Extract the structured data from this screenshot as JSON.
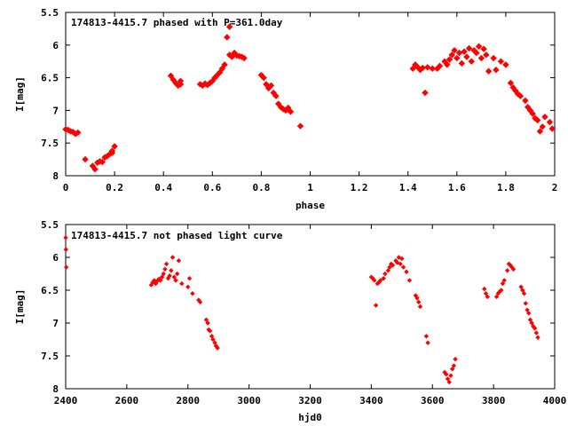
{
  "chart_data": [
    {
      "type": "scatter",
      "title": "174813-4415.7 phased with P=361.0day",
      "xlabel": "phase",
      "ylabel": "I[mag]",
      "xlim": [
        0,
        2
      ],
      "ylim": [
        8,
        5.5
      ],
      "y_inverted": true,
      "xticks": [
        "0",
        "0.2",
        "0.4",
        "0.6",
        "0.8",
        "1",
        "1.2",
        "1.4",
        "1.6",
        "1.8",
        "2"
      ],
      "yticks": [
        "5.5",
        "6",
        "6.5",
        "7",
        "7.5",
        "8"
      ],
      "marker_color": "#ff0000",
      "series": [
        {
          "values": [
            [
              0.0,
              7.29
            ],
            [
              0.01,
              7.3
            ],
            [
              0.02,
              7.32
            ],
            [
              0.03,
              7.33
            ],
            [
              0.04,
              7.36
            ],
            [
              0.05,
              7.34
            ],
            [
              0.08,
              7.75
            ],
            [
              0.11,
              7.85
            ],
            [
              0.12,
              7.9
            ],
            [
              0.13,
              7.8
            ],
            [
              0.14,
              7.78
            ],
            [
              0.15,
              7.79
            ],
            [
              0.16,
              7.72
            ],
            [
              0.17,
              7.7
            ],
            [
              0.18,
              7.67
            ],
            [
              0.19,
              7.65
            ],
            [
              0.19,
              7.62
            ],
            [
              0.2,
              7.55
            ],
            [
              0.43,
              6.47
            ],
            [
              0.44,
              6.53
            ],
            [
              0.45,
              6.58
            ],
            [
              0.46,
              6.62
            ],
            [
              0.47,
              6.55
            ],
            [
              0.47,
              6.6
            ],
            [
              0.55,
              6.6
            ],
            [
              0.56,
              6.62
            ],
            [
              0.57,
              6.59
            ],
            [
              0.58,
              6.61
            ],
            [
              0.59,
              6.58
            ],
            [
              0.6,
              6.55
            ],
            [
              0.61,
              6.5
            ],
            [
              0.62,
              6.46
            ],
            [
              0.63,
              6.42
            ],
            [
              0.64,
              6.36
            ],
            [
              0.65,
              6.3
            ],
            [
              0.66,
              5.88
            ],
            [
              0.67,
              5.72
            ],
            [
              0.67,
              6.15
            ],
            [
              0.68,
              6.18
            ],
            [
              0.69,
              6.12
            ],
            [
              0.7,
              6.16
            ],
            [
              0.71,
              6.17
            ],
            [
              0.72,
              6.18
            ],
            [
              0.73,
              6.2
            ],
            [
              0.8,
              6.46
            ],
            [
              0.81,
              6.5
            ],
            [
              0.82,
              6.6
            ],
            [
              0.83,
              6.66
            ],
            [
              0.84,
              6.62
            ],
            [
              0.85,
              6.73
            ],
            [
              0.86,
              6.78
            ],
            [
              0.87,
              6.9
            ],
            [
              0.88,
              6.95
            ],
            [
              0.89,
              6.98
            ],
            [
              0.9,
              7.0
            ],
            [
              0.91,
              6.96
            ],
            [
              0.92,
              7.02
            ],
            [
              0.96,
              7.24
            ],
            [
              1.42,
              6.36
            ],
            [
              1.43,
              6.3
            ],
            [
              1.44,
              6.34
            ],
            [
              1.45,
              6.38
            ],
            [
              1.46,
              6.35
            ],
            [
              1.47,
              6.73
            ],
            [
              1.48,
              6.34
            ],
            [
              1.5,
              6.36
            ],
            [
              1.52,
              6.36
            ],
            [
              1.53,
              6.32
            ],
            [
              1.55,
              6.25
            ],
            [
              1.56,
              6.3
            ],
            [
              1.57,
              6.22
            ],
            [
              1.58,
              6.15
            ],
            [
              1.59,
              6.08
            ],
            [
              1.6,
              6.2
            ],
            [
              1.61,
              6.12
            ],
            [
              1.62,
              6.28
            ],
            [
              1.63,
              6.1
            ],
            [
              1.64,
              6.18
            ],
            [
              1.65,
              6.05
            ],
            [
              1.66,
              6.25
            ],
            [
              1.67,
              6.08
            ],
            [
              1.68,
              6.12
            ],
            [
              1.69,
              6.02
            ],
            [
              1.7,
              6.2
            ],
            [
              1.71,
              6.06
            ],
            [
              1.72,
              6.15
            ],
            [
              1.73,
              6.4
            ],
            [
              1.75,
              6.2
            ],
            [
              1.76,
              6.38
            ],
            [
              1.78,
              6.25
            ],
            [
              1.8,
              6.3
            ],
            [
              1.82,
              6.58
            ],
            [
              1.83,
              6.65
            ],
            [
              1.84,
              6.7
            ],
            [
              1.85,
              6.75
            ],
            [
              1.86,
              6.78
            ],
            [
              1.88,
              6.85
            ],
            [
              1.89,
              6.95
            ],
            [
              1.9,
              7.0
            ],
            [
              1.91,
              7.05
            ],
            [
              1.92,
              7.12
            ],
            [
              1.93,
              7.15
            ],
            [
              1.94,
              7.32
            ],
            [
              1.95,
              7.25
            ],
            [
              1.96,
              7.1
            ],
            [
              1.98,
              7.18
            ],
            [
              1.99,
              7.28
            ]
          ]
        }
      ]
    },
    {
      "type": "scatter",
      "title": "174813-4415.7 not phased light curve",
      "xlabel": "hjd0",
      "ylabel": "I[mag]",
      "xlim": [
        2400,
        4000
      ],
      "ylim": [
        8,
        5.5
      ],
      "y_inverted": true,
      "xticks": [
        "2400",
        "2600",
        "2800",
        "3000",
        "3200",
        "3400",
        "3600",
        "3800",
        "4000"
      ],
      "yticks": [
        "5.5",
        "6",
        "6.5",
        "7",
        "7.5",
        "8"
      ],
      "marker_color": "#ff0000",
      "series": [
        {
          "values": [
            [
              2400,
              5.7
            ],
            [
              2401,
              5.88
            ],
            [
              2402,
              6.15
            ],
            [
              2680,
              6.42
            ],
            [
              2685,
              6.38
            ],
            [
              2690,
              6.35
            ],
            [
              2695,
              6.4
            ],
            [
              2700,
              6.36
            ],
            [
              2705,
              6.33
            ],
            [
              2710,
              6.35
            ],
            [
              2715,
              6.3
            ],
            [
              2720,
              6.25
            ],
            [
              2725,
              6.18
            ],
            [
              2730,
              6.1
            ],
            [
              2735,
              6.32
            ],
            [
              2740,
              6.28
            ],
            [
              2745,
              6.2
            ],
            [
              2750,
              6.0
            ],
            [
              2755,
              6.3
            ],
            [
              2760,
              6.35
            ],
            [
              2765,
              6.25
            ],
            [
              2770,
              6.05
            ],
            [
              2780,
              6.4
            ],
            [
              2800,
              6.45
            ],
            [
              2805,
              6.32
            ],
            [
              2815,
              6.55
            ],
            [
              2835,
              6.65
            ],
            [
              2840,
              6.68
            ],
            [
              2860,
              6.95
            ],
            [
              2865,
              7.0
            ],
            [
              2868,
              7.1
            ],
            [
              2872,
              7.12
            ],
            [
              2878,
              7.2
            ],
            [
              2882,
              7.25
            ],
            [
              2888,
              7.3
            ],
            [
              2892,
              7.35
            ],
            [
              2897,
              7.38
            ],
            [
              3400,
              6.3
            ],
            [
              3405,
              6.32
            ],
            [
              3410,
              6.35
            ],
            [
              3415,
              6.73
            ],
            [
              3420,
              6.4
            ],
            [
              3425,
              6.38
            ],
            [
              3430,
              6.35
            ],
            [
              3440,
              6.32
            ],
            [
              3445,
              6.25
            ],
            [
              3455,
              6.2
            ],
            [
              3460,
              6.15
            ],
            [
              3465,
              6.1
            ],
            [
              3470,
              6.12
            ],
            [
              3480,
              6.05
            ],
            [
              3485,
              6.08
            ],
            [
              3490,
              6.0
            ],
            [
              3495,
              6.1
            ],
            [
              3500,
              6.02
            ],
            [
              3505,
              6.15
            ],
            [
              3515,
              6.22
            ],
            [
              3525,
              6.35
            ],
            [
              3545,
              6.58
            ],
            [
              3550,
              6.62
            ],
            [
              3555,
              6.68
            ],
            [
              3560,
              6.75
            ],
            [
              3580,
              7.2
            ],
            [
              3585,
              7.3
            ],
            [
              3640,
              7.75
            ],
            [
              3645,
              7.78
            ],
            [
              3650,
              7.85
            ],
            [
              3655,
              7.9
            ],
            [
              3660,
              7.8
            ],
            [
              3665,
              7.7
            ],
            [
              3670,
              7.65
            ],
            [
              3675,
              7.55
            ],
            [
              3770,
              6.48
            ],
            [
              3775,
              6.55
            ],
            [
              3780,
              6.6
            ],
            [
              3810,
              6.6
            ],
            [
              3815,
              6.55
            ],
            [
              3820,
              6.52
            ],
            [
              3825,
              6.5
            ],
            [
              3830,
              6.4
            ],
            [
              3835,
              6.35
            ],
            [
              3845,
              6.2
            ],
            [
              3850,
              6.1
            ],
            [
              3855,
              6.12
            ],
            [
              3860,
              6.15
            ],
            [
              3865,
              6.18
            ],
            [
              3890,
              6.45
            ],
            [
              3895,
              6.5
            ],
            [
              3900,
              6.55
            ],
            [
              3905,
              6.7
            ],
            [
              3910,
              6.8
            ],
            [
              3915,
              6.85
            ],
            [
              3920,
              6.95
            ],
            [
              3925,
              7.0
            ],
            [
              3930,
              7.05
            ],
            [
              3935,
              7.08
            ],
            [
              3940,
              7.15
            ],
            [
              3945,
              7.22
            ]
          ]
        }
      ]
    }
  ]
}
